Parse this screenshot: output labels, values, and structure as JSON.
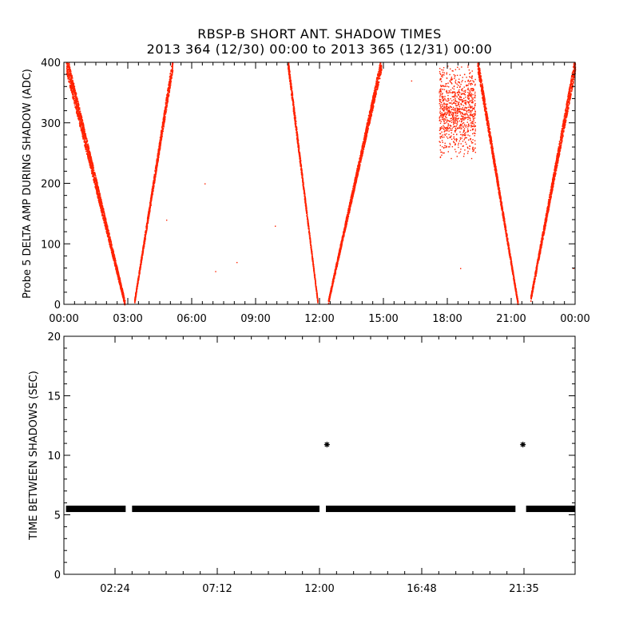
{
  "header": {
    "title": "RBSP-B SHORT ANT. SHADOW TIMES",
    "subtitle": "2013 364 (12/30) 00:00 to 2013 365 (12/31) 00:00"
  },
  "colors": {
    "amp_points": "#ff2200",
    "interval_points": "#000000",
    "axes": "#000000"
  },
  "chart_data": [
    {
      "type": "scatter",
      "ylabel": "Probe 5 DELTA AMP DURING SHADOW (ADC)",
      "xlim": [
        0,
        24
      ],
      "ylim": [
        0,
        400
      ],
      "x_unit": "hours",
      "x_ticks": [
        0,
        3,
        6,
        9,
        12,
        15,
        18,
        21,
        24
      ],
      "x_tick_labels": [
        "00:00",
        "03:00",
        "06:00",
        "09:00",
        "12:00",
        "15:00",
        "18:00",
        "21:00",
        "00:00"
      ],
      "y_ticks": [
        0,
        100,
        200,
        300,
        400
      ],
      "y_tick_labels": [
        "0",
        "100",
        "200",
        "300",
        "400"
      ],
      "grid": false,
      "series": [
        {
          "segments": [
            {
              "x0": 0.1,
              "x1": 2.85,
              "y0": 400,
              "y1": 2,
              "spread": 35
            },
            {
              "x0": 3.3,
              "x1": 5.1,
              "y0": 5,
              "y1": 400,
              "spread": 25
            },
            {
              "x0": 10.5,
              "x1": 11.9,
              "y0": 400,
              "y1": 5,
              "spread": 20
            },
            {
              "x0": 12.4,
              "x1": 14.9,
              "y0": 5,
              "y1": 400,
              "spread": 25
            },
            {
              "x0": 19.4,
              "x1": 21.3,
              "y0": 400,
              "y1": 2,
              "spread": 25
            },
            {
              "x0": 21.9,
              "x1": 24.0,
              "y0": 10,
              "y1": 400,
              "spread": 30
            }
          ],
          "clusters": [
            {
              "x0": 17.6,
              "x1": 19.3,
              "y0": 240,
              "y1": 400
            }
          ],
          "outliers": [
            [
              4.8,
              140
            ],
            [
              7.1,
              55
            ],
            [
              8.1,
              70
            ],
            [
              9.9,
              130
            ],
            [
              6.6,
              200
            ],
            [
              16.3,
              370
            ],
            [
              18.6,
              60
            ],
            [
              23.9,
              60
            ]
          ]
        }
      ]
    },
    {
      "type": "scatter",
      "ylabel": "TIME BETWEEN SHADOWS (SEC)",
      "xlim": [
        0,
        24
      ],
      "ylim": [
        0,
        20
      ],
      "x_unit": "hours",
      "x_ticks": [
        2.4,
        7.2,
        12.0,
        16.8,
        21.6
      ],
      "x_tick_labels": [
        "02:24",
        "07:12",
        "12:00",
        "16:48",
        "21:35"
      ],
      "y_ticks": [
        0,
        5,
        10,
        15,
        20
      ],
      "y_tick_labels": [
        "0",
        "5",
        "10",
        "15",
        "20"
      ],
      "grid": false,
      "series": [
        {
          "runs": [
            {
              "x0": 0.1,
              "x1": 2.9,
              "y": 5.5
            },
            {
              "x0": 3.2,
              "x1": 12.0,
              "y": 5.5
            },
            {
              "x0": 12.3,
              "x1": 21.2,
              "y": 5.5
            },
            {
              "x0": 21.7,
              "x1": 24.0,
              "y": 5.5
            }
          ],
          "points": [
            [
              12.35,
              10.9
            ],
            [
              21.55,
              10.9
            ]
          ]
        }
      ]
    }
  ]
}
